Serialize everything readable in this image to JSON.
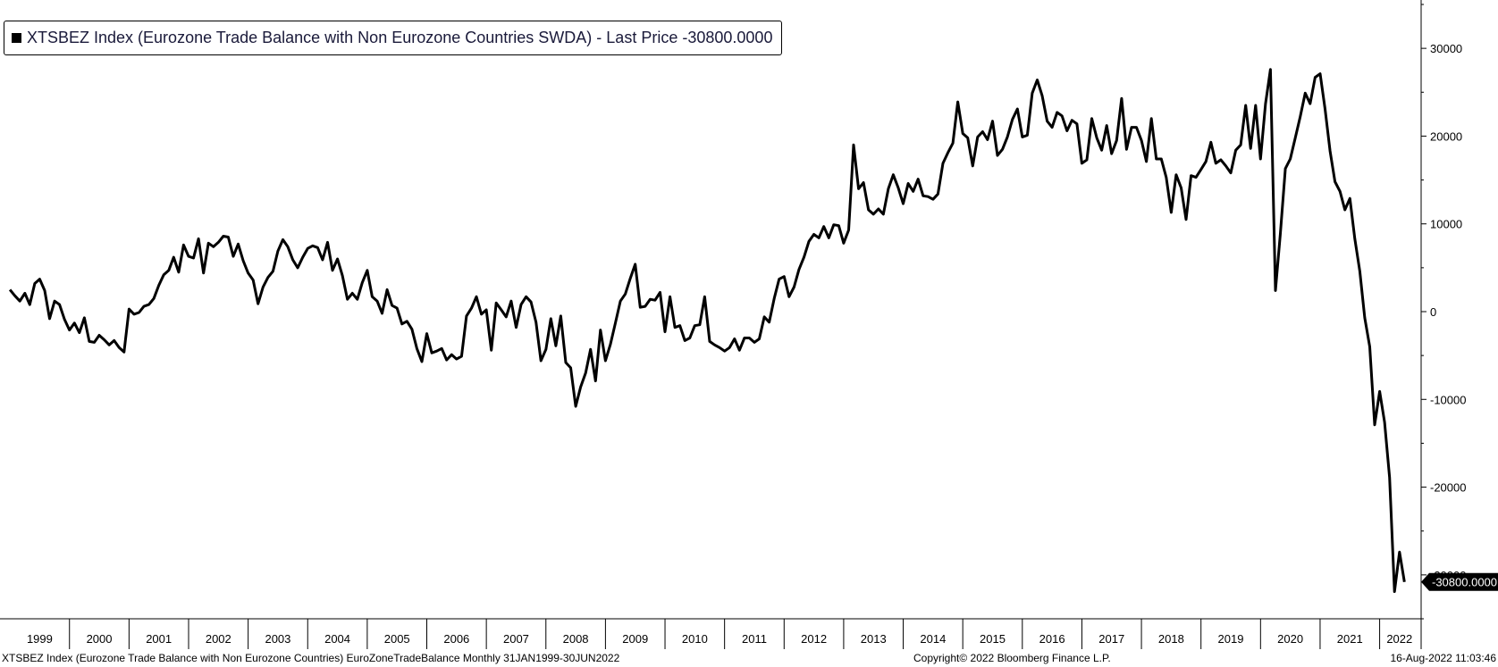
{
  "chart_data": {
    "type": "line",
    "legend": {
      "series_label": "XTSBEZ Index (Eurozone Trade Balance with Non Eurozone Countries SWDA)",
      "separator": " - ",
      "last_price_label": "Last Price",
      "last_price_value": "-30800.0000"
    },
    "last_value_label": "-30800.0000",
    "x_range": [
      "1998-11",
      "2022-09"
    ],
    "ylim": [
      -35000,
      35000
    ],
    "yticks": [
      30000,
      20000,
      10000,
      0,
      -10000,
      -20000,
      -30000
    ],
    "ytick_labels": [
      "30000",
      "20000",
      "10000",
      "0",
      "-10000",
      "-20000",
      "-30000"
    ],
    "year_labels": [
      "1999",
      "2000",
      "2001",
      "2002",
      "2003",
      "2004",
      "2005",
      "2006",
      "2007",
      "2008",
      "2009",
      "2010",
      "2011",
      "2012",
      "2013",
      "2014",
      "2015",
      "2016",
      "2017",
      "2018",
      "2019",
      "2020",
      "2021",
      "2022"
    ],
    "grid": false,
    "axis_side": "right",
    "series": [
      {
        "start": "1999-01",
        "frequency": "monthly",
        "color": "#000000",
        "values": [
          2500,
          1800,
          1200,
          2100,
          800,
          3200,
          3700,
          2400,
          -800,
          1200,
          800,
          -900,
          -2100,
          -1300,
          -2400,
          -700,
          -3400,
          -3500,
          -2700,
          -3200,
          -3800,
          -3300,
          -4100,
          -4600,
          300,
          -300,
          -100,
          600,
          800,
          1500,
          3000,
          4200,
          4700,
          6200,
          4500,
          7600,
          6300,
          6100,
          8300,
          4400,
          7800,
          7400,
          7900,
          8600,
          8500,
          6300,
          7700,
          5800,
          4400,
          3600,
          900,
          2800,
          3900,
          4600,
          6900,
          8200,
          7400,
          5900,
          5000,
          6200,
          7200,
          7500,
          7300,
          5900,
          7900,
          4700,
          6000,
          4100,
          1400,
          2100,
          1400,
          3300,
          4700,
          1700,
          1200,
          -200,
          2500,
          700,
          400,
          -1400,
          -1100,
          -2000,
          -4200,
          -5700,
          -2500,
          -4700,
          -4500,
          -4200,
          -5500,
          -4900,
          -5400,
          -5100,
          -500,
          400,
          1700,
          -300,
          200,
          -4400,
          1000,
          200,
          -600,
          1200,
          -1800,
          800,
          1700,
          1100,
          -1200,
          -5600,
          -4300,
          -800,
          -3900,
          -500,
          -5800,
          -6400,
          -10800,
          -8600,
          -7000,
          -4300,
          -7900,
          -2100,
          -5600,
          -3700,
          -1300,
          1200,
          2000,
          3800,
          5400,
          500,
          600,
          1400,
          1300,
          2200,
          -2300,
          1700,
          -1800,
          -1600,
          -3300,
          -3000,
          -1600,
          -1500,
          1700,
          -3400,
          -3800,
          -4100,
          -4500,
          -4100,
          -3100,
          -4400,
          -3000,
          -3000,
          -3500,
          -3100,
          -600,
          -1200,
          1500,
          3700,
          4000,
          1700,
          2800,
          4800,
          6200,
          8000,
          8800,
          8400,
          9700,
          8400,
          9900,
          9800,
          7800,
          9300,
          19000,
          14000,
          14700,
          11600,
          11100,
          11700,
          11100,
          14000,
          15600,
          14100,
          12300,
          14600,
          13700,
          15100,
          13200,
          13100,
          12800,
          13400,
          16900,
          18100,
          19200,
          23900,
          20300,
          19800,
          16600,
          19900,
          20500,
          19600,
          21700,
          17800,
          18500,
          19900,
          21900,
          23100,
          19900,
          20100,
          24900,
          26400,
          24600,
          21700,
          21000,
          22700,
          22300,
          20600,
          21800,
          21400,
          16900,
          17300,
          22000,
          19800,
          18400,
          21200,
          18000,
          19500,
          24300,
          18500,
          21000,
          21000,
          19500,
          17100,
          22000,
          17400,
          17400,
          15300,
          11300,
          15600,
          14100,
          10500,
          15500,
          15300,
          16200,
          17100,
          19300,
          16900,
          17300,
          16600,
          15800,
          18400,
          19000,
          23500,
          18600,
          23500,
          17400,
          23700,
          27600,
          2400,
          8900,
          16300,
          17400,
          19800,
          22200,
          24900,
          23700,
          26700,
          27100,
          23100,
          18300,
          14800,
          13700,
          11600,
          12900,
          8300,
          4600,
          -700,
          -4000,
          -12900,
          -9100,
          -12600,
          -18900,
          -31900,
          -27400,
          -30800
        ]
      }
    ],
    "x_axis_footer": "XTSBEZ Index (Eurozone Trade Balance with Non Eurozone Countries) EuroZoneTradeBalance  Monthly 31JAN1999-30JUN2022",
    "copyright": "Copyright© 2022 Bloomberg Finance L.P.",
    "timestamp": "16-Aug-2022 11:03:46"
  }
}
